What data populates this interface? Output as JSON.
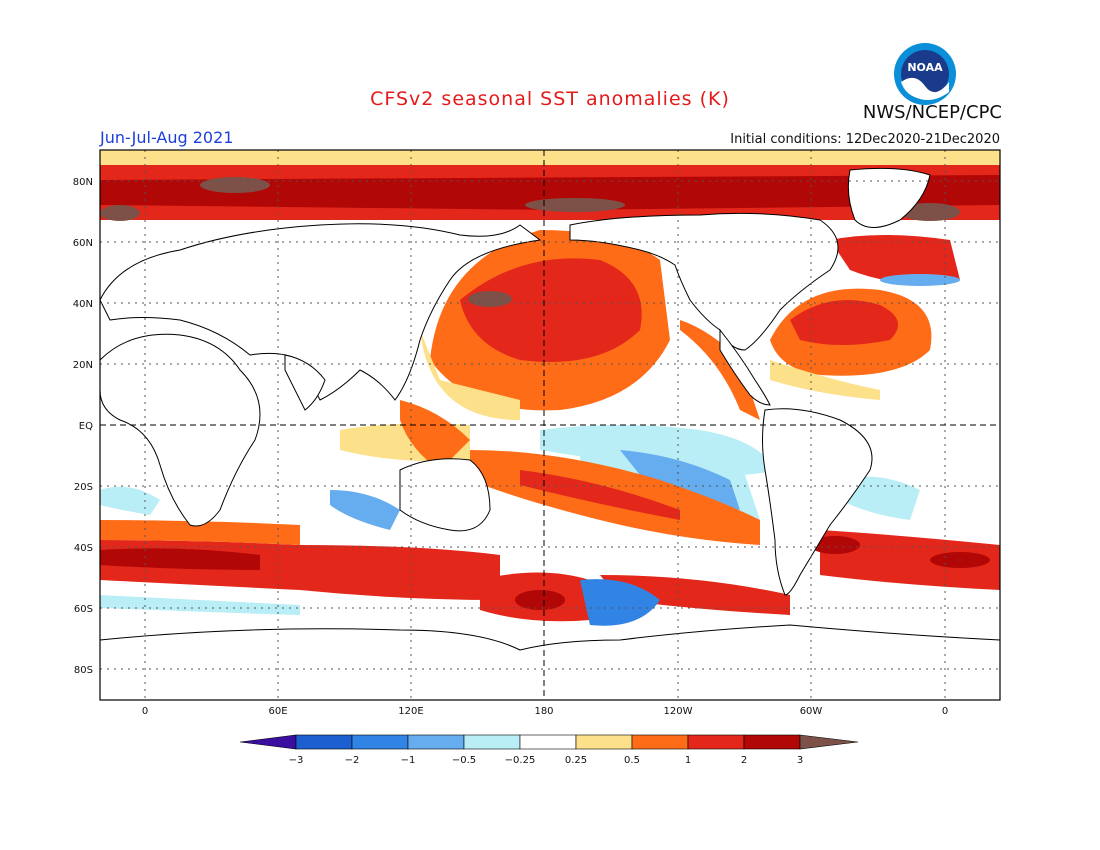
{
  "title": "CFSv2 seasonal SST anomalies (K)",
  "period": "Jun-Jul-Aug 2021",
  "initial_conditions": "Initial conditions: 12Dec2020-21Dec2020",
  "organization": "NWS/NCEP/CPC",
  "logo_text": "NOAA",
  "lat_labels": [
    "80N",
    "60N",
    "40N",
    "20N",
    "EQ",
    "20S",
    "40S",
    "60S",
    "80S"
  ],
  "lon_labels": [
    "0",
    "60E",
    "120E",
    "180",
    "120W",
    "60W",
    "0"
  ],
  "colorbar": {
    "ticks": [
      "-3",
      "-2",
      "-1",
      "-0.5",
      "-0.25",
      "0.25",
      "0.5",
      "1",
      "2",
      "3"
    ],
    "colors": [
      "#3a0fa0",
      "#1c5fd0",
      "#3183e4",
      "#66adf0",
      "#b9eef6",
      "#ffffff",
      "#fde08a",
      "#ff6c17",
      "#e3271a",
      "#b10707",
      "#7d5147"
    ]
  }
}
